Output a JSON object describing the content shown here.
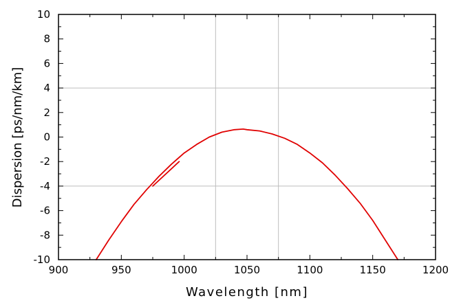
{
  "chart_data": {
    "type": "line",
    "title": "",
    "xlabel": "Wavelength [nm]",
    "ylabel": "Dispersion [ps/nm/km]",
    "xlim": [
      900,
      1200
    ],
    "ylim": [
      -10,
      10
    ],
    "x_ticks": [
      "900",
      "950",
      "1000",
      "1050",
      "1100",
      "1150",
      "1200"
    ],
    "y_ticks": [
      "-10",
      "-8",
      "-6",
      "-4",
      "-2",
      "0",
      "2",
      "4",
      "6",
      "8",
      "10"
    ],
    "grid": {
      "x": [
        1025,
        1075
      ],
      "y": [
        -4,
        4
      ]
    },
    "line_color": "#e00000",
    "series": [
      {
        "x": [
          930,
          940,
          950,
          960,
          970,
          980,
          990,
          1000,
          1010,
          1020,
          1030,
          1040,
          1047,
          1050,
          1060,
          1070,
          1080,
          1090,
          1100,
          1110,
          1120,
          1130,
          1140,
          1150,
          1160,
          1170
        ],
        "y": [
          -10.0,
          -8.4,
          -6.9,
          -5.5,
          -4.3,
          -3.2,
          -2.2,
          -1.3,
          -0.6,
          0.0,
          0.4,
          0.6,
          0.65,
          0.6,
          0.5,
          0.25,
          -0.1,
          -0.6,
          -1.3,
          -2.1,
          -3.1,
          -4.2,
          -5.4,
          -6.8,
          -8.4,
          -10.0
        ]
      },
      {
        "x": [
          975,
          996
        ],
        "y": [
          -4.0,
          -2.0
        ]
      }
    ]
  }
}
